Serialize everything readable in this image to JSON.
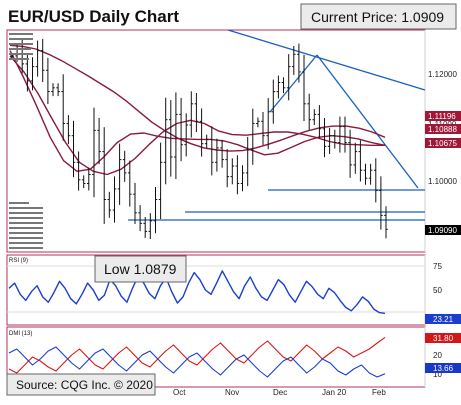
{
  "title": "EUR/USD Daily Chart",
  "current_price_label": "Current Price: 1.0909",
  "low_label": "Low 1.0879",
  "source_label": "Source: CQG Inc. © 2020",
  "price_tags": [
    {
      "text": "1.11196",
      "color": "#a01838"
    },
    {
      "text": "1.10888",
      "color": "#a01838"
    },
    {
      "text": "1.10675",
      "color": "#a01838"
    },
    {
      "text": "1.09090",
      "color": "#000000"
    }
  ],
  "rsi_label": "RSI (9)",
  "rsi_value_tag": "23.21",
  "dmi_label": "DMI (13)",
  "dmi_tags": [
    {
      "text": "31.80",
      "color": "#d01818"
    },
    {
      "text": "13.66",
      "color": "#1838c8"
    }
  ],
  "colors": {
    "bars": "#111111",
    "moving_average": "#8a1a3c",
    "trendline": "#1b5fc0",
    "rsi": "#1a3fd0",
    "dmi_plus": "#1a3fd0",
    "dmi_minus": "#e01515",
    "panel_border": "#b03060"
  },
  "chart_data": [
    {
      "type": "line",
      "title": "EUR/USD Daily Chart",
      "x_tick_labels": [
        "Oct",
        "Nov",
        "Dec",
        "Jan 20",
        "Feb"
      ],
      "y_tick_labels": [
        "1.12000",
        "1.11000",
        "1.10000"
      ],
      "ylim": [
        1.087,
        1.128
      ],
      "series": [
        {
          "values": [
            1.1235,
            1.1248,
            1.122,
            1.1188,
            1.1215,
            1.1245,
            1.1208,
            1.1168,
            1.1175,
            1.1168,
            1.1108,
            1.1085,
            1.1035,
            1.1002,
            1.0995,
            1.1012,
            1.1095,
            1.1055,
            1.0965,
            1.0945,
            1.0985,
            1.104,
            1.1015,
            1.0975,
            1.094,
            1.092,
            1.0905,
            1.0925,
            1.0965,
            1.1035,
            1.1115,
            1.1045,
            1.1125,
            1.1068,
            1.1105,
            1.1145,
            1.1112,
            1.107,
            1.1078,
            1.1035,
            1.1062,
            1.104,
            1.1008,
            1.1028,
            1.0995,
            1.1015,
            1.1058,
            1.1108,
            1.1112,
            1.1085,
            1.113,
            1.1168,
            1.1185,
            1.1175,
            1.1215,
            1.1238,
            1.1205,
            1.1145,
            1.1115,
            1.1125,
            1.1098,
            1.1065,
            1.1085,
            1.1072,
            1.1102,
            1.1072,
            1.103,
            1.1055,
            1.102,
            1.1005,
            1.102,
            1.0982,
            1.0935,
            1.0909
          ]
        },
        {
          "values": [
            1.1255,
            1.1253,
            1.1248,
            1.1238,
            1.1226,
            1.1212,
            1.1198,
            1.1183,
            1.1168,
            1.115,
            1.113,
            1.111,
            1.1094,
            1.108,
            1.107,
            1.1062,
            1.1058,
            1.1056,
            1.1057,
            1.1062,
            1.1069,
            1.1077,
            1.1086,
            1.1094,
            1.11,
            1.1103,
            1.1103,
            1.1099,
            1.1092,
            1.1082
          ]
        },
        {
          "values": [
            1.1235,
            1.1205,
            1.1165,
            1.1118,
            1.1072,
            1.1035,
            1.1018,
            1.1012,
            1.1022,
            1.1042,
            1.1068,
            1.1092,
            1.1108,
            1.1114,
            1.1108,
            1.1094,
            1.1087,
            1.1086,
            1.1089,
            1.1092,
            1.1092,
            1.1088,
            1.1082,
            1.1074,
            1.1069,
            1.1068,
            1.1067,
            1.1067
          ]
        },
        {
          "values": [
            1.1245,
            1.1195,
            1.114,
            1.1082,
            1.1038,
            1.1018,
            1.1022,
            1.1045,
            1.1072,
            1.1088,
            1.109,
            1.1084,
            1.108,
            1.1079,
            1.1078,
            1.1078,
            1.1075,
            1.1068,
            1.1058,
            1.1049,
            1.1052,
            1.1063,
            1.1074,
            1.1082,
            1.1085,
            1.1083,
            1.1079,
            1.1072,
            1.1067
          ]
        }
      ]
    },
    {
      "type": "line",
      "title": "RSI (9)",
      "y_tick_labels": [
        "75",
        "50",
        "25"
      ],
      "ylim": [
        12,
        88
      ],
      "series": [
        {
          "values": [
            52,
            58,
            45,
            38,
            48,
            55,
            42,
            36,
            47,
            60,
            52,
            40,
            34,
            45,
            58,
            50,
            38,
            44,
            62,
            55,
            43,
            36,
            52,
            66,
            58,
            46,
            40,
            55,
            64,
            48,
            35,
            42,
            58,
            70,
            62,
            50,
            45,
            58,
            72,
            60,
            48,
            40,
            55,
            65,
            52,
            42,
            38,
            50,
            62,
            56,
            44,
            36,
            48,
            60,
            54,
            45,
            40,
            52,
            47,
            38,
            30,
            26,
            33,
            42,
            37,
            28,
            24,
            23
          ]
        }
      ]
    },
    {
      "type": "line",
      "title": "DMI (13)",
      "y_tick_labels": [
        "20",
        "10"
      ],
      "ylim": [
        8,
        36
      ],
      "series": [
        {
          "values": [
            24,
            26,
            22,
            18,
            21,
            25,
            27,
            23,
            19,
            16,
            20,
            24,
            26,
            22,
            18,
            15,
            19,
            23,
            25,
            21,
            17,
            14,
            18,
            22,
            24,
            20,
            16,
            13,
            17,
            21,
            23,
            19,
            15,
            12,
            16,
            20,
            22,
            18,
            14,
            17,
            21,
            19,
            15,
            13,
            16,
            18,
            14,
            12,
            13.66
          ]
        },
        {
          "values": [
            16,
            14,
            18,
            22,
            20,
            17,
            15,
            19,
            23,
            26,
            22,
            18,
            16,
            20,
            24,
            27,
            23,
            19,
            17,
            21,
            25,
            28,
            24,
            20,
            18,
            22,
            26,
            29,
            25,
            21,
            19,
            23,
            27,
            30,
            26,
            22,
            20,
            24,
            28,
            25,
            21,
            24,
            27,
            25,
            22,
            24,
            26,
            29,
            31.8
          ]
        }
      ]
    }
  ]
}
